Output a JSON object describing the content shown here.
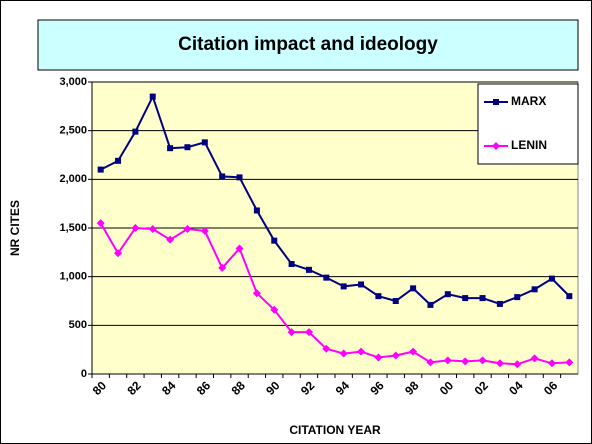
{
  "chart_data": {
    "type": "line",
    "title": "Citation impact and ideology",
    "xlabel": "CITATION YEAR",
    "ylabel": "NR CITES",
    "categories": [
      "80",
      null,
      "82",
      null,
      "84",
      null,
      "86",
      null,
      "88",
      null,
      "90",
      null,
      "92",
      null,
      "94",
      null,
      "96",
      null,
      "98",
      null,
      "00",
      null,
      "02",
      null,
      "04",
      null,
      "06",
      null
    ],
    "series": [
      {
        "name": "MARX",
        "color": "#000080",
        "marker": "square",
        "values": [
          2100,
          2190,
          2490,
          2850,
          2320,
          2330,
          2380,
          2030,
          2020,
          1680,
          1370,
          1130,
          1070,
          990,
          900,
          920,
          800,
          750,
          880,
          710,
          820,
          780,
          780,
          720,
          790,
          870,
          980,
          800
        ]
      },
      {
        "name": "LENIN",
        "color": "#ff00ff",
        "marker": "diamond",
        "values": [
          1550,
          1240,
          1500,
          1490,
          1380,
          1490,
          1470,
          1090,
          1290,
          830,
          660,
          430,
          430,
          260,
          210,
          230,
          170,
          190,
          230,
          120,
          140,
          130,
          140,
          110,
          100,
          160,
          110,
          120
        ]
      }
    ],
    "ylim": [
      0,
      3000
    ],
    "yticks": [
      0,
      500,
      {
        "value": 1000,
        "label": "1,000"
      },
      {
        "value": 1500,
        "label": "1,500"
      },
      {
        "value": 2000,
        "label": "2,000"
      },
      {
        "value": 2500,
        "label": "2,500"
      },
      {
        "value": 3000,
        "label": "3,000"
      }
    ],
    "grid": true,
    "legend": "top-right"
  }
}
